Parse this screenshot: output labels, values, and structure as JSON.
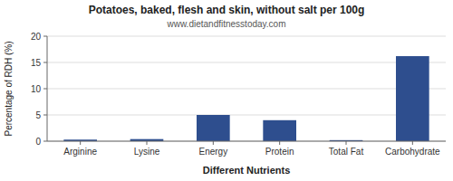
{
  "chart_data": {
    "type": "bar",
    "title": "Potatoes, baked, flesh and skin, without salt per 100g",
    "subtitle": "www.dietandfitnesstoday.com",
    "xlabel": "Different Nutrients",
    "ylabel": "Percentage of RDH (%)",
    "categories": [
      "Arginine",
      "Lysine",
      "Energy",
      "Protein",
      "Total Fat",
      "Carbohydrate"
    ],
    "values": [
      0.3,
      0.4,
      5.0,
      4.0,
      0.2,
      16.2
    ],
    "color": "#2e4e8e",
    "ylim": [
      0,
      20
    ],
    "yticks": [
      0,
      5,
      10,
      15,
      20
    ],
    "grid": true
  }
}
